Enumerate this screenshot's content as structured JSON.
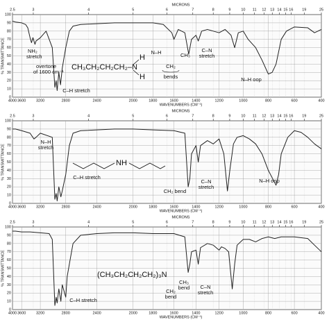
{
  "chart_data": [
    {
      "type": "line",
      "top_axis_label": "MICRONS",
      "y_label": "% TRANSMITTANCE",
      "x_label": "WAVENUMBERS (CM⁻¹)",
      "xlim": [
        4000,
        400
      ],
      "xticks": [
        4000,
        3600,
        3200,
        2800,
        2400,
        2000,
        1800,
        1600,
        1400,
        1200,
        1000,
        800,
        600,
        400
      ],
      "x2ticks": [
        2.5,
        3,
        4,
        5,
        6,
        7,
        8,
        9,
        10,
        11,
        12,
        13,
        14,
        15,
        16,
        19,
        25
      ],
      "ylim": [
        0,
        100
      ],
      "yticks": [
        0,
        10,
        20,
        30,
        40,
        50,
        60,
        70,
        80,
        90,
        100
      ],
      "grid": true,
      "x": [
        4000,
        3800,
        3600,
        3500,
        3450,
        3400,
        3370,
        3340,
        3300,
        3280,
        3200,
        3100,
        3000,
        2960,
        2940,
        2925,
        2900,
        2875,
        2850,
        2800,
        2750,
        2700,
        2600,
        2400,
        2200,
        2000,
        1800,
        1700,
        1620,
        1600,
        1560,
        1500,
        1465,
        1440,
        1400,
        1380,
        1350,
        1300,
        1250,
        1200,
        1150,
        1100,
        1070,
        1040,
        1000,
        960,
        900,
        850,
        800,
        770,
        740,
        700,
        660,
        600,
        500,
        450,
        400
      ],
      "series": [
        {
          "color": "#222222",
          "values": [
            92,
            91,
            90,
            88,
            84,
            72,
            66,
            72,
            64,
            68,
            72,
            80,
            60,
            12,
            20,
            8,
            30,
            15,
            35,
            60,
            80,
            86,
            88,
            89,
            90,
            90,
            90,
            88,
            78,
            70,
            82,
            78,
            52,
            70,
            75,
            68,
            80,
            82,
            80,
            78,
            82,
            75,
            60,
            78,
            80,
            70,
            60,
            45,
            28,
            30,
            40,
            70,
            80,
            85,
            84,
            78,
            82
          ]
        }
      ],
      "annotations": [
        "NH₂",
        "stretch",
        "overtone",
        "of 1600 cm⁻¹",
        "C–H stretch",
        "CH₃CH₂CH₂CH₂–N",
        "H",
        "H",
        "N–H",
        "CH₂",
        "bends",
        "CH₃",
        "C–N",
        "stretch",
        "N–H oop"
      ]
    },
    {
      "type": "line",
      "top_axis_label": "MICRONS",
      "y_label": "% TRANSMITTANCE",
      "x_label": "WAVENUMBERS (CM⁻¹)",
      "xlim": [
        4000,
        400
      ],
      "xticks": [
        4000,
        3600,
        3200,
        2800,
        2400,
        2000,
        1800,
        1600,
        1400,
        1200,
        1000,
        800,
        600,
        400
      ],
      "x2ticks": [
        2.5,
        3,
        4,
        5,
        6,
        7,
        8,
        9,
        10,
        11,
        12,
        13,
        14,
        15,
        16,
        19,
        25
      ],
      "ylim": [
        0,
        100
      ],
      "yticks": [
        0,
        10,
        20,
        30,
        40,
        50,
        60,
        70,
        80,
        90,
        100
      ],
      "grid": true,
      "x": [
        4000,
        3800,
        3600,
        3400,
        3320,
        3280,
        3200,
        3000,
        2960,
        2940,
        2925,
        2900,
        2870,
        2850,
        2800,
        2750,
        2700,
        2600,
        2200,
        2000,
        1800,
        1600,
        1500,
        1470,
        1455,
        1440,
        1400,
        1380,
        1360,
        1300,
        1250,
        1200,
        1160,
        1130,
        1110,
        1080,
        1050,
        1000,
        950,
        900,
        850,
        800,
        760,
        740,
        720,
        700,
        650,
        600,
        550,
        500,
        450,
        400
      ],
      "series": [
        {
          "color": "#222222",
          "values": [
            90,
            90,
            88,
            85,
            78,
            80,
            85,
            80,
            5,
            12,
            3,
            20,
            8,
            15,
            35,
            70,
            85,
            88,
            90,
            90,
            89,
            88,
            85,
            20,
            30,
            60,
            70,
            50,
            70,
            76,
            72,
            78,
            60,
            15,
            40,
            72,
            80,
            82,
            78,
            72,
            60,
            40,
            28,
            22,
            35,
            60,
            80,
            88,
            86,
            80,
            72,
            66
          ]
        }
      ],
      "annotations": [
        "N–H",
        "stretch",
        "NH",
        "C–H stretch",
        "CH₂ bend",
        "C–N",
        "stretch",
        "N–H oop"
      ]
    },
    {
      "type": "line",
      "top_axis_label": "MICRONS",
      "y_label": "% TRANSMITTANCE",
      "x_label": "WAVENUMBERS (CM⁻¹)",
      "xlim": [
        4000,
        400
      ],
      "xticks": [
        4000,
        3600,
        3200,
        2800,
        2400,
        2000,
        1800,
        1600,
        1400,
        1200,
        1000,
        800,
        600,
        400
      ],
      "x2ticks": [
        2.5,
        3,
        4,
        5,
        6,
        7,
        8,
        9,
        10,
        11,
        12,
        13,
        14,
        15,
        16,
        19,
        25
      ],
      "ylim": [
        0,
        100
      ],
      "yticks": [
        0,
        10,
        20,
        30,
        40,
        50,
        60,
        70,
        80,
        90,
        100
      ],
      "grid": true,
      "x": [
        4000,
        3800,
        3600,
        3400,
        3200,
        3050,
        3000,
        2960,
        2940,
        2925,
        2900,
        2870,
        2850,
        2800,
        2780,
        2740,
        2700,
        2600,
        2400,
        2200,
        2000,
        1800,
        1600,
        1500,
        1470,
        1455,
        1440,
        1400,
        1380,
        1360,
        1300,
        1250,
        1200,
        1180,
        1150,
        1120,
        1090,
        1070,
        1050,
        1000,
        950,
        900,
        850,
        800,
        750,
        700,
        600,
        500,
        450,
        400
      ],
      "series": [
        {
          "color": "#222222",
          "values": [
            95,
            95,
            94,
            94,
            93,
            92,
            85,
            5,
            15,
            8,
            25,
            10,
            30,
            15,
            40,
            60,
            80,
            90,
            92,
            93,
            93,
            92,
            92,
            88,
            45,
            55,
            70,
            72,
            55,
            75,
            80,
            78,
            72,
            76,
            74,
            70,
            25,
            55,
            78,
            85,
            85,
            82,
            86,
            88,
            86,
            88,
            88,
            86,
            78,
            70
          ]
        }
      ],
      "annotations": [
        "(CH₃CH₂CH₂CH₂)₃N",
        "C–H stretch",
        "CH₂",
        "bend",
        "CH₃",
        "bend",
        "C–N",
        "stretch"
      ]
    }
  ]
}
